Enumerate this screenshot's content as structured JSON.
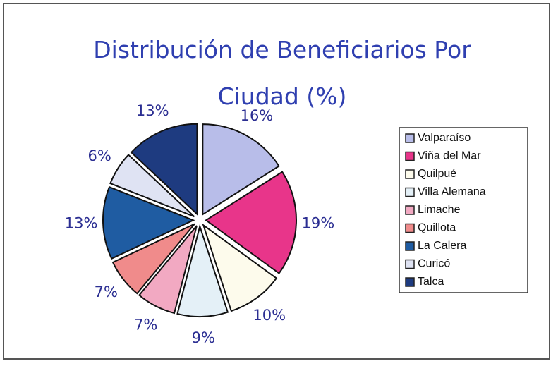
{
  "chart_data": {
    "type": "pie",
    "title": "Distribución de Beneficiarios Por Ciudad (%)",
    "categories": [
      "Valparaíso",
      "Viña del Mar",
      "Quilpué",
      "Villa Alemana",
      "Limache",
      "Quillota",
      "La Calera",
      "Curicó",
      "Talca"
    ],
    "values": [
      16,
      19,
      10,
      9,
      7,
      7,
      13,
      6,
      13
    ],
    "value_labels": [
      "16%",
      "19%",
      "10%",
      "9%",
      "7%",
      "7%",
      "13%",
      "6%",
      "13%"
    ],
    "colors": [
      "#b8bde9",
      "#e8358a",
      "#fdfbec",
      "#e4f0f7",
      "#f2a9c2",
      "#f08b8b",
      "#1f5ca2",
      "#dfe3f3",
      "#1e3b80"
    ],
    "legend": "right"
  }
}
